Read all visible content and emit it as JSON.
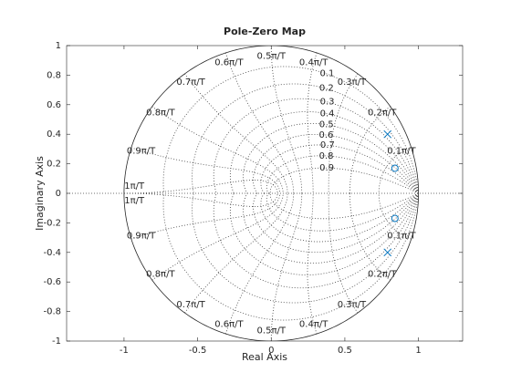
{
  "chart_data": {
    "type": "pzmap",
    "title": "Pole-Zero Map",
    "xlabel": "Real Axis",
    "ylabel": "Imaginary Axis",
    "xlim": [
      -1.39,
      1.3
    ],
    "ylim": [
      -1,
      1
    ],
    "xticks": [
      -1,
      -0.5,
      0,
      0.5,
      1
    ],
    "yticks": [
      -1,
      -0.8,
      -0.6,
      -0.4,
      -0.2,
      0,
      0.2,
      0.4,
      0.6,
      0.8,
      1
    ],
    "zeta_grid": [
      0.1,
      0.2,
      0.3,
      0.4,
      0.5,
      0.6,
      0.7,
      0.8,
      0.9
    ],
    "wn_grid": [
      {
        "value": 0.1,
        "label": "0.1π/T"
      },
      {
        "value": 0.2,
        "label": "0.2π/T"
      },
      {
        "value": 0.3,
        "label": "0.3π/T"
      },
      {
        "value": 0.4,
        "label": "0.4π/T"
      },
      {
        "value": 0.5,
        "label": "0.5π/T"
      },
      {
        "value": 0.6,
        "label": "0.6π/T"
      },
      {
        "value": 0.7,
        "label": "0.7π/T"
      },
      {
        "value": 0.8,
        "label": "0.8π/T"
      },
      {
        "value": 0.9,
        "label": "0.9π/T"
      },
      {
        "value": 1,
        "label": "1π/T"
      }
    ],
    "series": [
      {
        "marker": "x",
        "color": "#0072bd",
        "x": [
          0.79,
          0.79
        ],
        "values": [
          0.4,
          -0.4
        ]
      },
      {
        "marker": "o",
        "color": "#0072bd",
        "x": [
          0.84,
          0.84
        ],
        "values": [
          0.17,
          -0.17
        ]
      }
    ]
  }
}
